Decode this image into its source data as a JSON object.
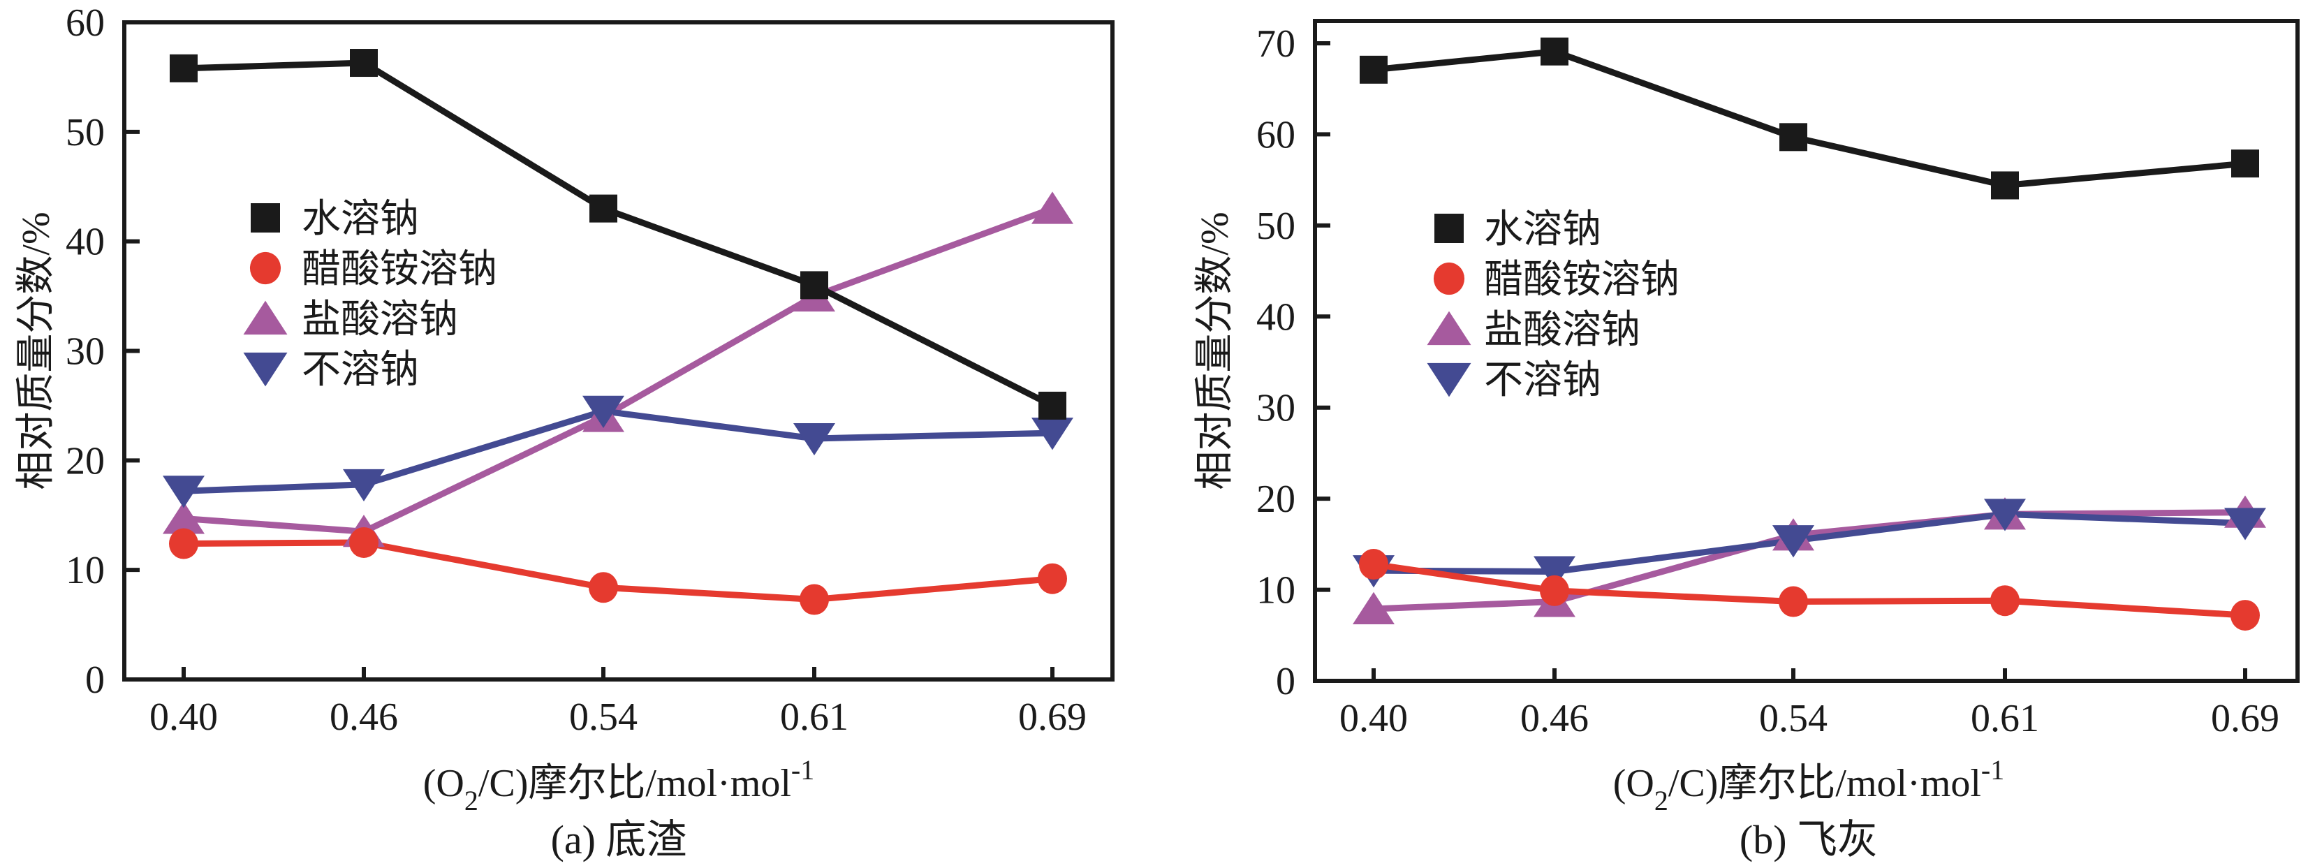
{
  "chart_data": [
    {
      "type": "line",
      "id": "a",
      "caption": "(a) 底渣",
      "xlabel": "(O2/C)摩尔比/mol·mol-1",
      "xlabel_parts": {
        "open": "(O",
        "sub": "2",
        "mid": "/C)摩尔比/mol·mol",
        "sup": "-1"
      },
      "ylabel": "相对质量分数/%",
      "categories": [
        "0.40",
        "0.46",
        "0.54",
        "0.61",
        "0.69"
      ],
      "x": [
        0.4,
        0.46,
        0.54,
        0.61,
        0.69
      ],
      "ylim": [
        0,
        60
      ],
      "yticks": [
        0,
        10,
        20,
        30,
        40,
        50,
        60
      ],
      "grid": false,
      "legend_position": "center-left",
      "series": [
        {
          "name": "水溶钠",
          "marker": "square",
          "color": "#1a1a1a",
          "values": [
            55.8,
            56.3,
            43.0,
            36.0,
            25.0
          ]
        },
        {
          "name": "醋酸铵溶钠",
          "marker": "circle",
          "color": "#e53a2f",
          "values": [
            12.4,
            12.5,
            8.4,
            7.3,
            9.2
          ]
        },
        {
          "name": "盐酸溶钠",
          "marker": "triangle-up",
          "color": "#a65a9e",
          "values": [
            14.7,
            13.5,
            24.0,
            35.0,
            43.0
          ]
        },
        {
          "name": "不溶钠",
          "marker": "triangle-down",
          "color": "#434a92",
          "values": [
            17.2,
            17.8,
            24.5,
            22.0,
            22.5
          ]
        }
      ]
    },
    {
      "type": "line",
      "id": "b",
      "caption": "(b) 飞灰",
      "xlabel": "(O2/C)摩尔比/mol·mol-1",
      "xlabel_parts": {
        "open": "(O",
        "sub": "2",
        "mid": "/C)摩尔比/mol·mol",
        "sup": "-1"
      },
      "ylabel": "相对质量分数/%",
      "categories": [
        "0.40",
        "0.46",
        "0.54",
        "0.61",
        "0.69"
      ],
      "x": [
        0.4,
        0.46,
        0.54,
        0.61,
        0.69
      ],
      "ylim": [
        0,
        70
      ],
      "yticks": [
        0,
        10,
        20,
        30,
        40,
        50,
        60,
        70
      ],
      "grid": false,
      "legend_position": "center-left",
      "series": [
        {
          "name": "水溶钠",
          "marker": "square",
          "color": "#1a1a1a",
          "values": [
            67.1,
            69.1,
            59.7,
            54.4,
            56.8
          ]
        },
        {
          "name": "醋酸铵溶钠",
          "marker": "circle",
          "color": "#e53a2f",
          "values": [
            12.8,
            9.9,
            8.7,
            8.8,
            7.2
          ]
        },
        {
          "name": "盐酸溶钠",
          "marker": "triangle-up",
          "color": "#a65a9e",
          "values": [
            7.9,
            8.7,
            16.0,
            18.3,
            18.5
          ]
        },
        {
          "name": "不溶钠",
          "marker": "triangle-down",
          "color": "#434a92",
          "values": [
            12.1,
            12.0,
            15.4,
            18.3,
            17.3
          ]
        }
      ]
    }
  ]
}
